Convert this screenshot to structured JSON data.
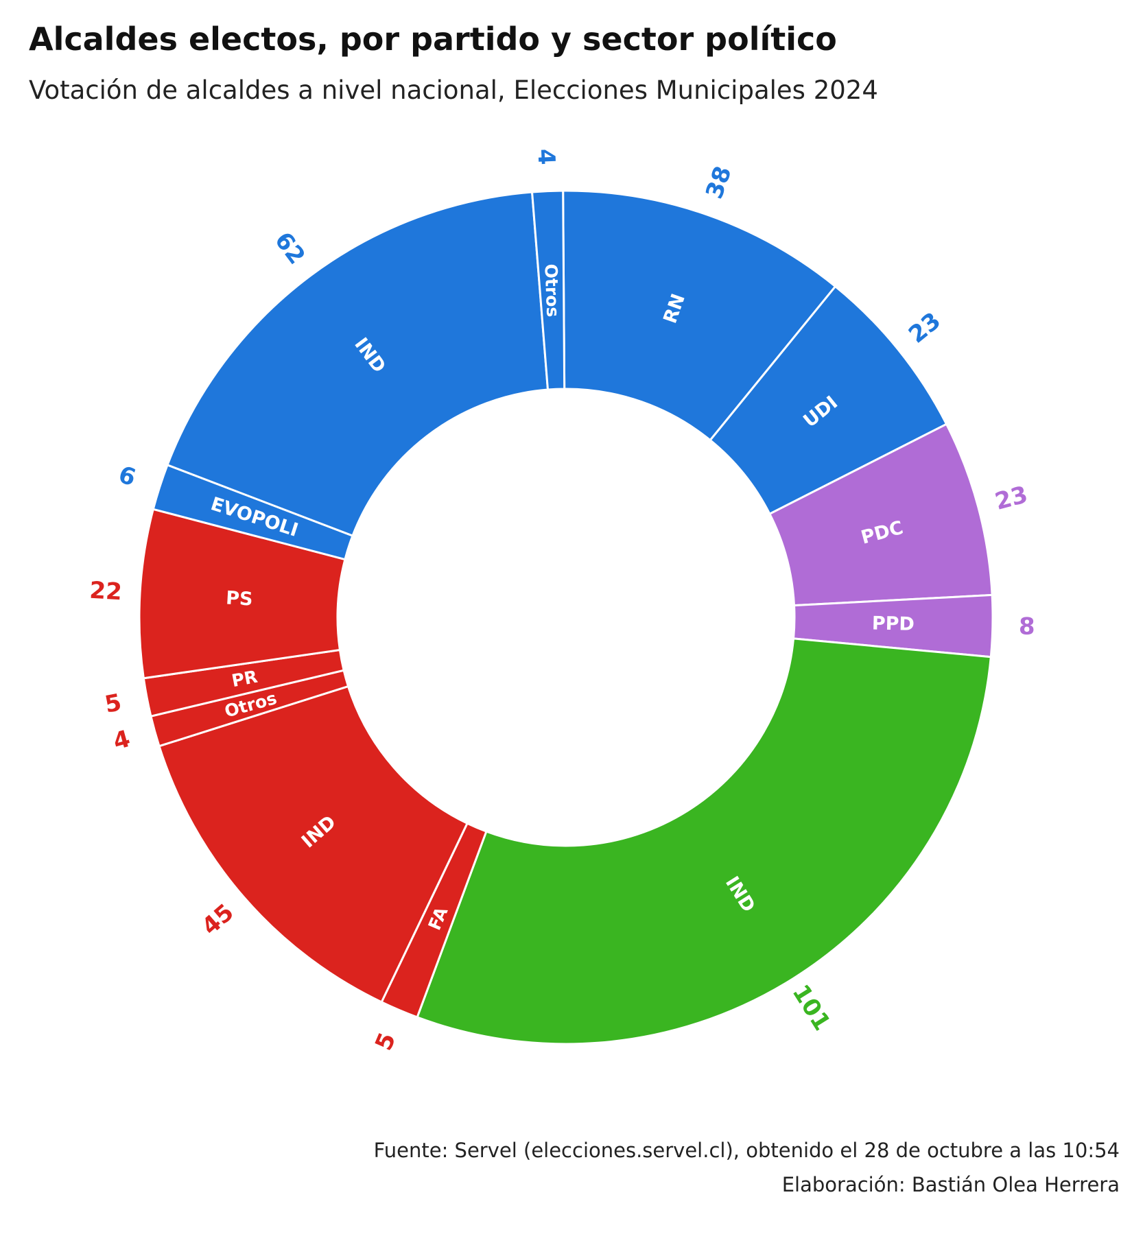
{
  "chart_data": {
    "type": "pie",
    "title": "Alcaldes electos, por partido y sector político",
    "subtitle": "Votación de alcaldes a nivel nacional, Elecciones Municipales 2024",
    "source": "Fuente: Servel (elecciones.servel.cl), obtenido el 28 de octubre a las 10:54",
    "credit": "Elaboración: Bastián Olea Herrera",
    "colors": {
      "derecha": "#1f77db",
      "centro": "#b06cd6",
      "independiente": "#3ab521",
      "izquierda": "#db231e"
    },
    "slices": [
      {
        "label": "RN",
        "value": 38,
        "group": "derecha"
      },
      {
        "label": "UDI",
        "value": 23,
        "group": "derecha"
      },
      {
        "label": "PDC",
        "value": 23,
        "group": "centro"
      },
      {
        "label": "PPD",
        "value": 8,
        "group": "centro"
      },
      {
        "label": "IND",
        "value": 101,
        "group": "independiente"
      },
      {
        "label": "FA",
        "value": 5,
        "group": "izquierda"
      },
      {
        "label": "IND",
        "value": 45,
        "group": "izquierda"
      },
      {
        "label": "Otros",
        "value": 4,
        "group": "izquierda"
      },
      {
        "label": "PR",
        "value": 5,
        "group": "izquierda"
      },
      {
        "label": "PS",
        "value": 22,
        "group": "izquierda"
      },
      {
        "label": "EVOPOLI",
        "value": 6,
        "group": "derecha"
      },
      {
        "label": "IND",
        "value": 62,
        "group": "derecha"
      },
      {
        "label": "Otros",
        "value": 4,
        "group": "derecha"
      }
    ]
  }
}
